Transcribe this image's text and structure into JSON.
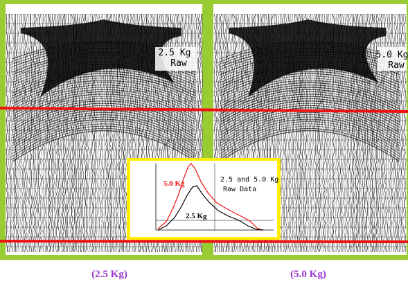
{
  "left_panel": {
    "label": "2.5 Kg",
    "sublabel": "Raw"
  },
  "right_panel": {
    "label": "5.0 Kg",
    "sublabel": "Raw"
  },
  "inset": {
    "series_labels": [
      "5.0 Kg",
      "2.5 Kg"
    ],
    "title": "2.5 and 5.0 Kg",
    "subtitle": "Raw Data"
  },
  "captions": [
    "(2.5 Kg)",
    "(5.0 Kg)"
  ]
}
